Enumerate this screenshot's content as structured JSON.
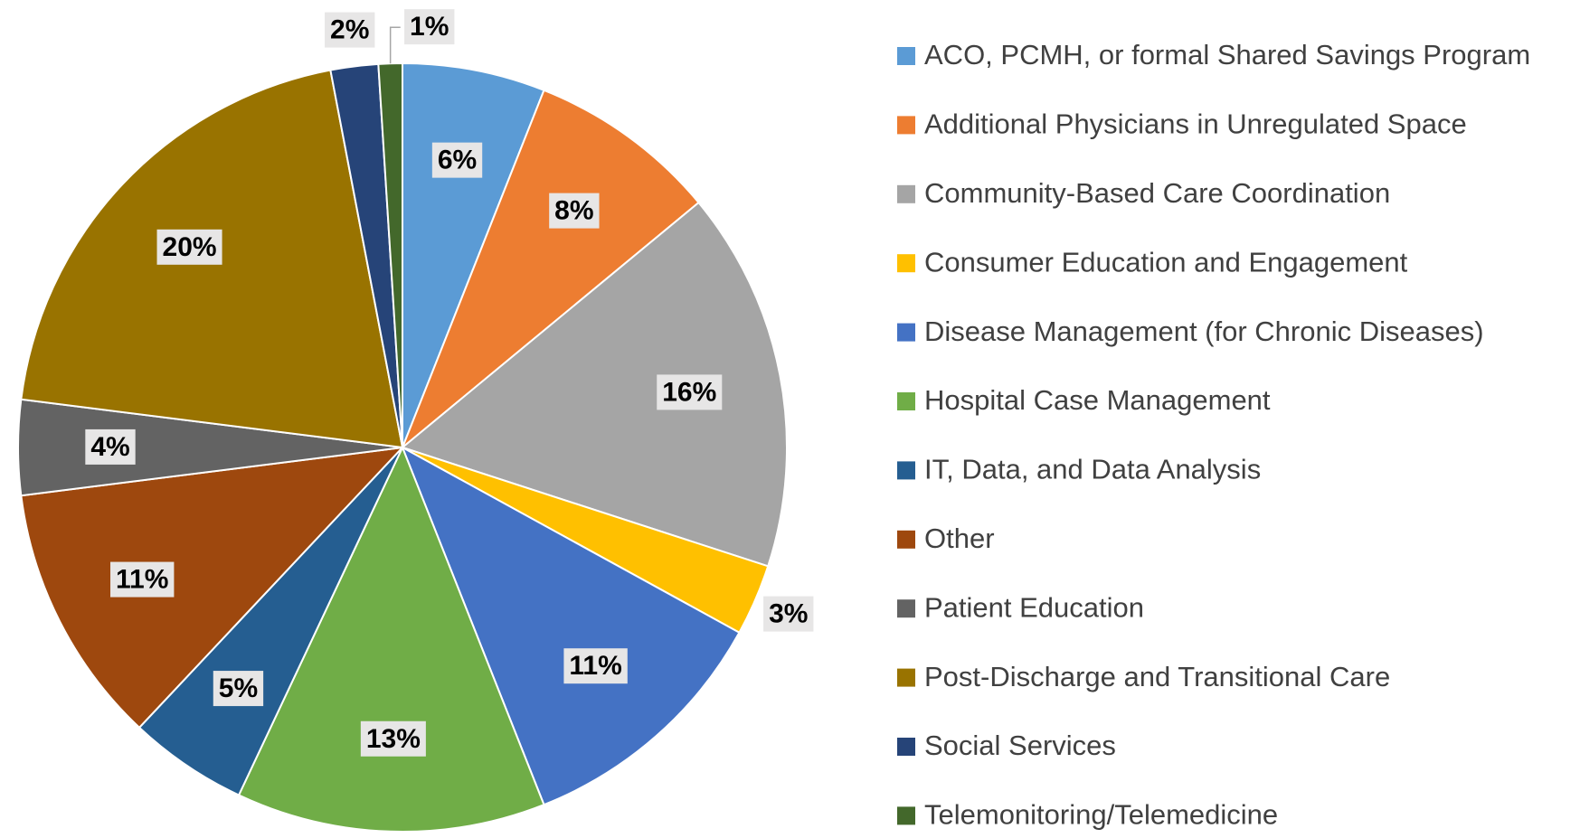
{
  "chart_data": {
    "type": "pie",
    "categories": [
      "ACO, PCMH, or formal Shared Savings Program",
      "Additional Physicians in Unregulated Space",
      "Community-Based Care Coordination",
      "Consumer Education and Engagement",
      "Disease Management (for Chronic Diseases)",
      "Hospital Case Management",
      "IT, Data, and Data Analysis",
      "Other",
      "Patient Education",
      "Post-Discharge and Transitional Care",
      "Social Services",
      "Telemonitoring/Telemedicine"
    ],
    "values": [
      6,
      8,
      16,
      3,
      11,
      13,
      5,
      11,
      4,
      20,
      2,
      1
    ],
    "value_labels": [
      "6%",
      "8%",
      "16%",
      "3%",
      "11%",
      "13%",
      "5%",
      "11%",
      "4%",
      "20%",
      "2%",
      "1%"
    ],
    "colors": [
      "#5b9bd5",
      "#ed7d31",
      "#a5a5a5",
      "#ffc000",
      "#4472c4",
      "#70ad47",
      "#255e91",
      "#9e480e",
      "#636363",
      "#997300",
      "#264478",
      "#43682b"
    ],
    "legend": "right"
  }
}
